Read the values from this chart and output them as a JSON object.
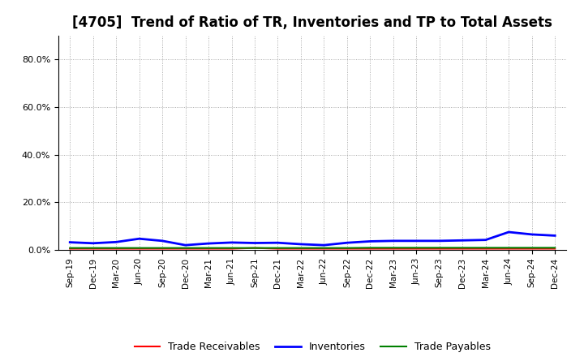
{
  "title": "[4705]  Trend of Ratio of TR, Inventories and TP to Total Assets",
  "x_labels": [
    "Sep-19",
    "Dec-19",
    "Mar-20",
    "Jun-20",
    "Sep-20",
    "Dec-20",
    "Mar-21",
    "Jun-21",
    "Sep-21",
    "Dec-21",
    "Mar-22",
    "Jun-22",
    "Sep-22",
    "Dec-22",
    "Mar-23",
    "Jun-23",
    "Sep-23",
    "Dec-23",
    "Mar-24",
    "Jun-24",
    "Sep-24",
    "Dec-24"
  ],
  "trade_receivables": [
    0.005,
    0.005,
    0.005,
    0.005,
    0.005,
    0.005,
    0.005,
    0.005,
    0.008,
    0.005,
    0.005,
    0.005,
    0.005,
    0.005,
    0.005,
    0.005,
    0.005,
    0.005,
    0.005,
    0.005,
    0.005,
    0.005
  ],
  "inventories": [
    0.032,
    0.028,
    0.033,
    0.047,
    0.038,
    0.02,
    0.027,
    0.031,
    0.029,
    0.03,
    0.024,
    0.02,
    0.03,
    0.036,
    0.038,
    0.038,
    0.038,
    0.04,
    0.042,
    0.075,
    0.065,
    0.06
  ],
  "trade_payables": [
    0.008,
    0.008,
    0.008,
    0.008,
    0.008,
    0.008,
    0.008,
    0.008,
    0.008,
    0.008,
    0.008,
    0.008,
    0.008,
    0.009,
    0.009,
    0.009,
    0.009,
    0.009,
    0.009,
    0.009,
    0.009,
    0.009
  ],
  "tr_color": "#ff0000",
  "inv_color": "#0000ff",
  "tp_color": "#008000",
  "ylim": [
    0.0,
    0.9
  ],
  "yticks": [
    0.0,
    0.2,
    0.4,
    0.6,
    0.8
  ],
  "background_color": "#ffffff",
  "plot_bg_color": "#ffffff",
  "grid_color": "#999999",
  "title_fontsize": 12,
  "legend_labels": [
    "Trade Receivables",
    "Inventories",
    "Trade Payables"
  ]
}
